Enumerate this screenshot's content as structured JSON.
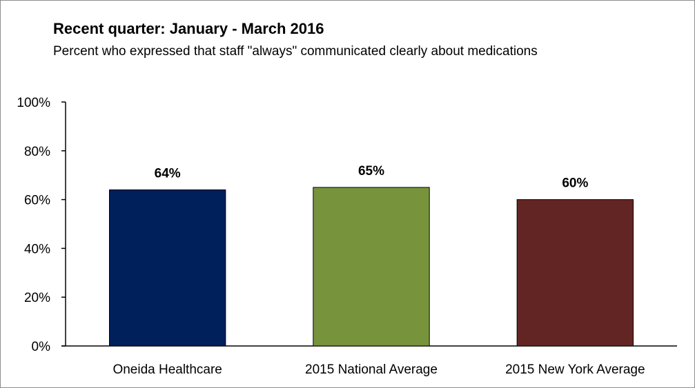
{
  "chart_data": {
    "type": "bar",
    "title": "Recent quarter: January - March 2016",
    "subtitle": "Percent who expressed that staff \"always\" communicated clearly about medications",
    "categories": [
      "Oneida Healthcare",
      "2015 National Average",
      "2015 New York Average"
    ],
    "values": [
      64,
      65,
      60
    ],
    "data_labels": [
      "64%",
      "65%",
      "60%"
    ],
    "colors": [
      "#00205b",
      "#77933c",
      "#632523"
    ],
    "ylim": [
      0,
      100
    ],
    "yticks": [
      0,
      20,
      40,
      60,
      80,
      100
    ],
    "ytick_labels": [
      "0%",
      "20%",
      "40%",
      "60%",
      "80%",
      "100%"
    ],
    "grid": false,
    "xlabel": "",
    "ylabel": ""
  }
}
